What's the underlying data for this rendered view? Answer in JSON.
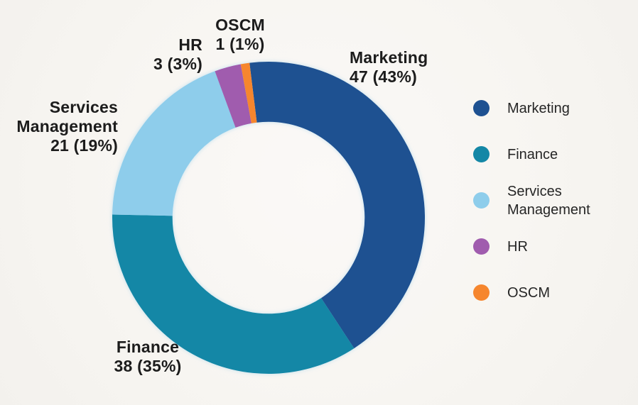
{
  "background_color": "#f7f5f2",
  "text_color": "#1c1c1c",
  "chart_data": {
    "type": "pie",
    "subtype": "donut",
    "title": "",
    "total": 110,
    "start_angle_deg": -7,
    "inner_radius_ratio": 0.615,
    "legend_position": "right",
    "grid": false,
    "categories": [
      "Marketing",
      "Finance",
      "Services Management",
      "HR",
      "OSCM"
    ],
    "values": [
      47,
      38,
      21,
      3,
      1
    ],
    "percents": [
      43,
      35,
      19,
      3,
      1
    ],
    "slices": [
      {
        "label": "Marketing",
        "value": 47,
        "percent": 43,
        "color": "#1e5191",
        "callout_lines": [
          "Marketing",
          "47 (43%)"
        ]
      },
      {
        "label": "Finance",
        "value": 38,
        "percent": 35,
        "color": "#1487a6",
        "callout_lines": [
          "Finance",
          "38 (35%)"
        ]
      },
      {
        "label": "Services Management",
        "value": 21,
        "percent": 19,
        "color": "#8ecdeb",
        "callout_lines": [
          "Services",
          "Management",
          "21 (19%)"
        ]
      },
      {
        "label": "HR",
        "value": 3,
        "percent": 3,
        "color": "#a05cae",
        "callout_lines": [
          "HR",
          "3 (3%)"
        ]
      },
      {
        "label": "OSCM",
        "value": 1,
        "percent": 1,
        "color": "#f6862e",
        "callout_lines": [
          "OSCM",
          "1 (1%)"
        ]
      }
    ]
  }
}
